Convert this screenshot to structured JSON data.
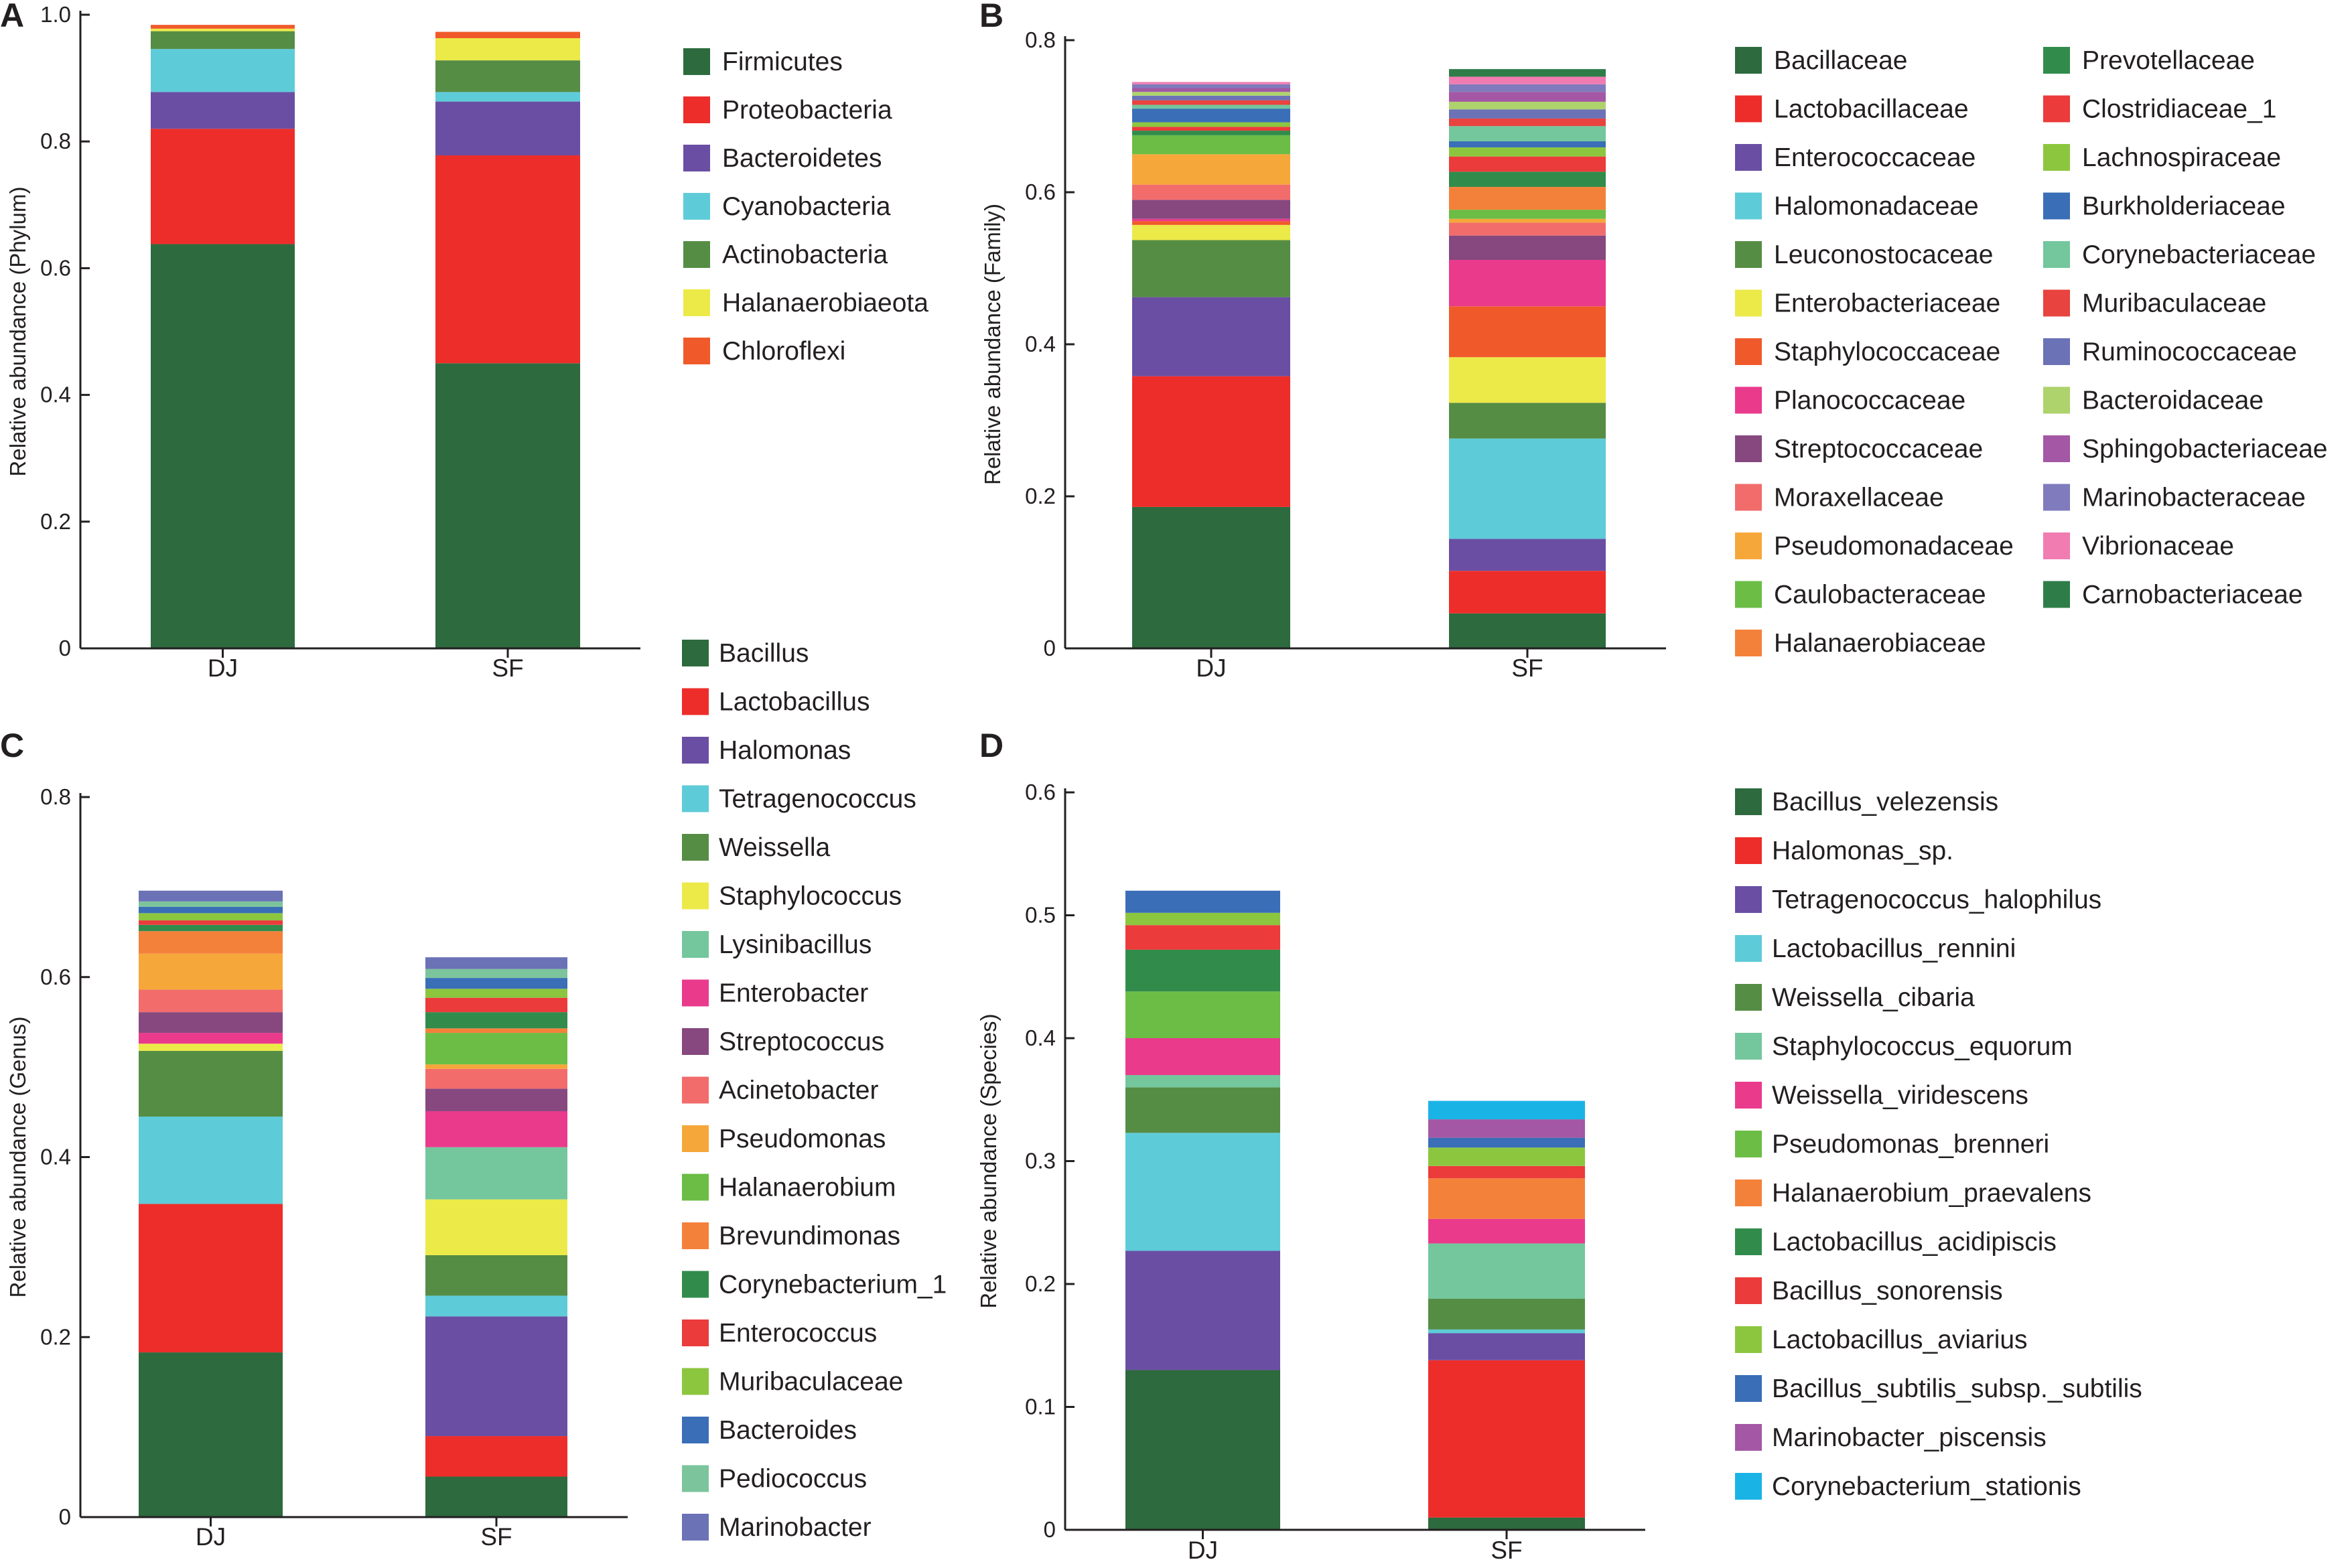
{
  "chart_data": [
    {
      "panel": "A",
      "type": "bar",
      "stacked": true,
      "ylabel": "Relative abundance (Phylum)",
      "ylim": [
        0,
        1.0
      ],
      "y_ticks": [
        "0",
        "0.2",
        "0.4",
        "0.6",
        "0.8",
        "1.0"
      ],
      "categories": [
        "DJ",
        "SF"
      ],
      "series": [
        {
          "name": "Firmicutes",
          "color": "#2d6a3e",
          "values": [
            0.638,
            0.45
          ]
        },
        {
          "name": "Proteobacteria",
          "color": "#ed2d2a",
          "values": [
            0.182,
            0.328
          ]
        },
        {
          "name": "Bacteroidetes",
          "color": "#6a4ea3",
          "values": [
            0.058,
            0.085
          ]
        },
        {
          "name": "Cyanobacteria",
          "color": "#5ecbd8",
          "values": [
            0.068,
            0.015
          ]
        },
        {
          "name": "Actinobacteria",
          "color": "#558d45",
          "values": [
            0.028,
            0.05
          ]
        },
        {
          "name": "Halanaerobiaeota",
          "color": "#ecea48",
          "values": [
            0.004,
            0.035
          ]
        },
        {
          "name": "Chloroflexi",
          "color": "#f05a2b",
          "values": [
            0.006,
            0.01
          ]
        }
      ],
      "legend_columns": [
        [
          "Firmicutes",
          "Proteobacteria",
          "Bacteroidetes",
          "Cyanobacteria",
          "Actinobacteria",
          "Halanaerobiaeota",
          "Chloroflexi"
        ]
      ]
    },
    {
      "panel": "B",
      "type": "bar",
      "stacked": true,
      "ylabel": "Relative abundance (Family)",
      "ylim": [
        0,
        0.8
      ],
      "y_ticks": [
        "0",
        "0.2",
        "0.4",
        "0.6",
        "0.8"
      ],
      "categories": [
        "DJ",
        "SF"
      ],
      "series": [
        {
          "name": "Bacillaceae",
          "color": "#2d6a3e",
          "values": [
            0.186,
            0.046
          ]
        },
        {
          "name": "Lactobacillaceae",
          "color": "#ed2d2a",
          "values": [
            0.172,
            0.056
          ]
        },
        {
          "name": "Enterococcaceae",
          "color": "#6a4ea3",
          "values": [
            0.104,
            0.042
          ]
        },
        {
          "name": "Halomonadaceae",
          "color": "#5ecbd8",
          "values": [
            0.0,
            0.132
          ]
        },
        {
          "name": "Leuconostocaceae",
          "color": "#558d45",
          "values": [
            0.075,
            0.047
          ]
        },
        {
          "name": "Enterobacteriaceae",
          "color": "#ecea48",
          "values": [
            0.02,
            0.06
          ]
        },
        {
          "name": "Staphylococcaceae",
          "color": "#f05a2b",
          "values": [
            0.005,
            0.067
          ]
        },
        {
          "name": "Planococcaceae",
          "color": "#ea3a8c",
          "values": [
            0.003,
            0.061
          ]
        },
        {
          "name": "Streptococcaceae",
          "color": "#86487f",
          "values": [
            0.025,
            0.032
          ]
        },
        {
          "name": "Moraxellaceae",
          "color": "#f26c6c",
          "values": [
            0.02,
            0.017
          ]
        },
        {
          "name": "Pseudomonadaceae",
          "color": "#f6a73a",
          "values": [
            0.04,
            0.005
          ]
        },
        {
          "name": "Caulobacteraceae",
          "color": "#6bbd45",
          "values": [
            0.025,
            0.012
          ]
        },
        {
          "name": "Halanaerobiaceae",
          "color": "#f4813a",
          "values": [
            0.0,
            0.03
          ]
        },
        {
          "name": "Prevotellaceae",
          "color": "#318c4c",
          "values": [
            0.006,
            0.02
          ]
        },
        {
          "name": "Clostridiaceae_1",
          "color": "#eb3b3b",
          "values": [
            0.005,
            0.02
          ]
        },
        {
          "name": "Lachnospiraceae",
          "color": "#8cc63f",
          "values": [
            0.006,
            0.012
          ]
        },
        {
          "name": "Burkholderiaceae",
          "color": "#3a6eb7",
          "values": [
            0.018,
            0.008
          ]
        },
        {
          "name": "Corynebacteriaceae",
          "color": "#74c69d",
          "values": [
            0.005,
            0.02
          ]
        },
        {
          "name": "Muribaculaceae",
          "color": "#e8433f",
          "values": [
            0.006,
            0.01
          ]
        },
        {
          "name": "Ruminococcaceae",
          "color": "#6b72b6",
          "values": [
            0.006,
            0.012
          ]
        },
        {
          "name": "Bacteroidaceae",
          "color": "#aed26c",
          "values": [
            0.005,
            0.01
          ]
        },
        {
          "name": "Sphingobacteriaceae",
          "color": "#a457a4",
          "values": [
            0.005,
            0.013
          ]
        },
        {
          "name": "Marinobacteraceae",
          "color": "#7f7bbd",
          "values": [
            0.005,
            0.01
          ]
        },
        {
          "name": "Vibrionaceae",
          "color": "#f07cb1",
          "values": [
            0.003,
            0.01
          ]
        },
        {
          "name": "Carnobacteriaceae",
          "color": "#2e7d48",
          "values": [
            0.0,
            0.01
          ]
        }
      ],
      "legend_columns": [
        [
          "Bacillaceae",
          "Lactobacillaceae",
          "Enterococcaceae",
          "Halomonadaceae",
          "Leuconostocaceae",
          "Enterobacteriaceae",
          "Staphylococcaceae",
          "Planococcaceae",
          "Streptococcaceae",
          "Moraxellaceae",
          "Pseudomonadaceae",
          "Caulobacteraceae",
          "Halanaerobiaceae"
        ],
        [
          "Prevotellaceae",
          "Clostridiaceae_1",
          "Lachnospiraceae",
          "Burkholderiaceae",
          "Corynebacteriaceae",
          "Muribaculaceae",
          "Ruminococcaceae",
          "Bacteroidaceae",
          "Sphingobacteriaceae",
          "Marinobacteraceae",
          "Vibrionaceae",
          "Carnobacteriaceae"
        ]
      ]
    },
    {
      "panel": "C",
      "type": "bar",
      "stacked": true,
      "ylabel": "Relative abundance (Genus)",
      "ylim": [
        0,
        0.8
      ],
      "y_ticks": [
        "0",
        "0.2",
        "0.4",
        "0.6",
        "0.8"
      ],
      "categories": [
        "DJ",
        "SF"
      ],
      "series": [
        {
          "name": "Bacillus",
          "color": "#2d6a3e",
          "values": [
            0.183,
            0.045
          ]
        },
        {
          "name": "Lactobacillus",
          "color": "#ed2d2a",
          "values": [
            0.165,
            0.045
          ]
        },
        {
          "name": "Halomonas",
          "color": "#6a4ea3",
          "values": [
            0.0,
            0.133
          ]
        },
        {
          "name": "Tetragenococcus",
          "color": "#5ecbd8",
          "values": [
            0.097,
            0.023
          ]
        },
        {
          "name": "Weissella",
          "color": "#558d45",
          "values": [
            0.073,
            0.045
          ]
        },
        {
          "name": "Staphylococcus",
          "color": "#ecea48",
          "values": [
            0.008,
            0.062
          ]
        },
        {
          "name": "Lysinibacillus",
          "color": "#74c69d",
          "values": [
            0.0,
            0.058
          ]
        },
        {
          "name": "Enterobacter",
          "color": "#ea3a8c",
          "values": [
            0.012,
            0.04
          ]
        },
        {
          "name": "Streptococcus",
          "color": "#86487f",
          "values": [
            0.023,
            0.025
          ]
        },
        {
          "name": "Acinetobacter",
          "color": "#f26c6c",
          "values": [
            0.025,
            0.022
          ]
        },
        {
          "name": "Pseudomonas",
          "color": "#f6a73a",
          "values": [
            0.04,
            0.005
          ]
        },
        {
          "name": "Halanaerobium",
          "color": "#6bbd45",
          "values": [
            0.0,
            0.035
          ]
        },
        {
          "name": "Brevundimonas",
          "color": "#f4813a",
          "values": [
            0.025,
            0.005
          ]
        },
        {
          "name": "Corynebacterium_1",
          "color": "#318c4c",
          "values": [
            0.007,
            0.018
          ]
        },
        {
          "name": "Enterococcus",
          "color": "#eb3b3b",
          "values": [
            0.005,
            0.016
          ]
        },
        {
          "name": "Muribaculaceae",
          "color": "#8cc63f",
          "values": [
            0.008,
            0.01
          ]
        },
        {
          "name": "Bacteroides",
          "color": "#3a6eb7",
          "values": [
            0.007,
            0.012
          ]
        },
        {
          "name": "Pediococcus",
          "color": "#7cc49c",
          "values": [
            0.006,
            0.01
          ]
        },
        {
          "name": "Marinobacter",
          "color": "#6b72b6",
          "values": [
            0.012,
            0.013
          ]
        }
      ],
      "legend_columns": [
        [
          "Bacillus",
          "Lactobacillus",
          "Halomonas",
          "Tetragenococcus",
          "Weissella",
          "Staphylococcus",
          "Lysinibacillus",
          "Enterobacter",
          "Streptococcus",
          "Acinetobacter",
          "Pseudomonas",
          "Halanaerobium",
          "Brevundimonas",
          "Corynebacterium_1",
          "Enterococcus",
          "Muribaculaceae",
          "Bacteroides",
          "Pediococcus",
          "Marinobacter"
        ]
      ]
    },
    {
      "panel": "D",
      "type": "bar",
      "stacked": true,
      "ylabel": "Relative abundance (Species)",
      "ylim": [
        0,
        0.6
      ],
      "y_ticks": [
        "0",
        "0.1",
        "0.2",
        "0.3",
        "0.4",
        "0.5",
        "0.6"
      ],
      "categories": [
        "DJ",
        "SF"
      ],
      "series": [
        {
          "name": "Bacillus_velezensis",
          "color": "#2d6a3e",
          "values": [
            0.13,
            0.01
          ]
        },
        {
          "name": "Halomonas_sp.",
          "color": "#ed2d2a",
          "values": [
            0.0,
            0.128
          ]
        },
        {
          "name": "Tetragenococcus_halophilus",
          "color": "#6a4ea3",
          "values": [
            0.097,
            0.022
          ]
        },
        {
          "name": "Lactobacillus_rennini",
          "color": "#5ecbd8",
          "values": [
            0.096,
            0.003
          ]
        },
        {
          "name": "Weissella_cibaria",
          "color": "#558d45",
          "values": [
            0.037,
            0.025
          ]
        },
        {
          "name": "Staphylococcus_equorum",
          "color": "#74c69d",
          "values": [
            0.01,
            0.045
          ]
        },
        {
          "name": "Weissella_viridescens",
          "color": "#ea3a8c",
          "values": [
            0.03,
            0.02
          ]
        },
        {
          "name": "Pseudomonas_brenneri",
          "color": "#6bbd45",
          "values": [
            0.038,
            0.0
          ]
        },
        {
          "name": "Halanaerobium_praevalens",
          "color": "#f4813a",
          "values": [
            0.0,
            0.033
          ]
        },
        {
          "name": "Lactobacillus_acidipiscis",
          "color": "#318c4c",
          "values": [
            0.034,
            0.0
          ]
        },
        {
          "name": "Bacillus_sonorensis",
          "color": "#eb3b3b",
          "values": [
            0.02,
            0.01
          ]
        },
        {
          "name": "Lactobacillus_aviarius",
          "color": "#8cc63f",
          "values": [
            0.01,
            0.015
          ]
        },
        {
          "name": "Bacillus_subtilis_subsp._subtilis",
          "color": "#3a6eb7",
          "values": [
            0.018,
            0.008
          ]
        },
        {
          "name": "Marinobacter_piscensis",
          "color": "#a457a4",
          "values": [
            0.0,
            0.015
          ]
        },
        {
          "name": "Corynebacterium_stationis",
          "color": "#1ab3e6",
          "values": [
            0.0,
            0.015
          ]
        }
      ],
      "legend_columns": [
        [
          "Bacillus_velezensis",
          "Halomonas_sp.",
          "Tetragenococcus_halophilus",
          "Lactobacillus_rennini",
          "Weissella_cibaria",
          "Staphylococcus_equorum",
          "Weissella_viridescens",
          "Pseudomonas_brenneri",
          "Halanaerobium_praevalens",
          "Lactobacillus_acidipiscis",
          "Bacillus_sonorensis",
          "Lactobacillus_aviarius",
          "Bacillus_subtilis_subsp._subtilis",
          "Marinobacter_piscensis",
          "Corynebacterium_stationis"
        ]
      ]
    }
  ]
}
